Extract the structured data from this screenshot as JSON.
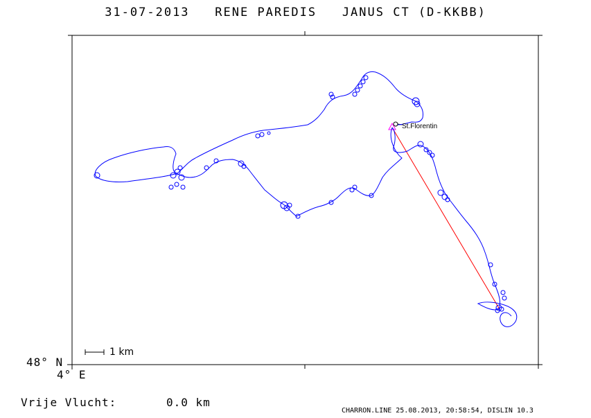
{
  "header": {
    "date": "31-07-2013",
    "pilot": "RENE PAREDIS",
    "glider": "JANUS CT (D-KKBB)"
  },
  "map": {
    "latitude_label": "48° N",
    "longitude_label": "4° E",
    "scale_label": "1 km",
    "place_name": "St.Florentin",
    "track_color": "#0000ff",
    "task_line_color": "#ff0000",
    "start_marker_color": "#ff00ff"
  },
  "result": {
    "label": "Vrije Vlucht:",
    "value": "0.0 km"
  },
  "footer": {
    "text": "CHARRON.LINE 25.08.2013, 20:58:54, DISLIN 10.3"
  }
}
